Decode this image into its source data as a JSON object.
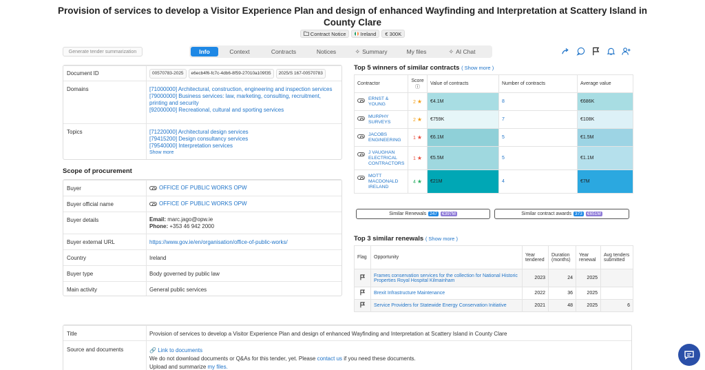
{
  "title": {
    "line1": "Provision of services to develop a Visitor Experience Plan and design of enhanced Wayfinding and Interpretation at Scattery Island in",
    "line2": "County Clare"
  },
  "badges": {
    "notice": "Contract Notice",
    "country": "Ireland",
    "value": "€ 300K"
  },
  "summarize_button": "Generate tender summarization",
  "tabs": [
    "Info",
    "Context",
    "Contracts",
    "Notices",
    "Summary",
    "My files",
    "AI Chat"
  ],
  "details": {
    "document_id_label": "Document ID",
    "document_ids": [
      "00570783-2025",
      "e6ecb4f6-fc7c-4db6-8f59-27010a109f35",
      "2025/S 167-00570783"
    ],
    "domains_label": "Domains",
    "domains": [
      "[71000000] Architectural, construction, engineering and inspection services",
      "[79000000] Business services: law, marketing, consulting, recruitment, printing and security",
      "[92000000] Recreational, cultural and sporting services"
    ],
    "topics_label": "Topics",
    "topics": [
      "[71220000] Architectural design services",
      "[79415200] Design consultancy services",
      "[79540000] Interpretation services"
    ],
    "show_more": "Show more"
  },
  "scope": {
    "title": "Scope of procurement",
    "buyer_label": "Buyer",
    "buyer": "OFFICE OF PUBLIC WORKS OPW",
    "buyer_official_label": "Buyer official name",
    "buyer_official": "OFFICE OF PUBLIC WORKS OPW",
    "buyer_details_label": "Buyer details",
    "email_label": "Email:",
    "email": "marc.jago@opw.ie",
    "phone_label": "Phone:",
    "phone": "+353 46 942 2000",
    "external_url_label": "Buyer external URL",
    "external_url": "https://www.gov.ie/en/organisation/office-of-public-works/",
    "country_label": "Country",
    "country": "Ireland",
    "buyer_type_label": "Buyer type",
    "buyer_type": "Body governed by public law",
    "main_activity_label": "Main activity",
    "main_activity": "General public services"
  },
  "winners": {
    "title": "Top 5 winners of similar contracts",
    "show_more": "( Show more )",
    "headers": [
      "Contractor",
      "Score",
      "Value of contracts",
      "Number of contracts",
      "Average value"
    ],
    "rows": [
      {
        "name": "ERNST & YOUNG",
        "score": "2",
        "star": "orange",
        "value": "€4.1M",
        "count": "8",
        "avg": "€686K",
        "value_color": "#a8dde3",
        "avg_color": "#a8dde3"
      },
      {
        "name": "MURPHY SURVEYS",
        "score": "2",
        "star": "orange",
        "value": "€759K",
        "count": "7",
        "avg": "€108K",
        "value_color": "#e6f6f8",
        "avg_color": "#ddf1f7"
      },
      {
        "name": "JACOBS ENGINEERING",
        "score": "1",
        "star": "red",
        "value": "€6.1M",
        "count": "5",
        "avg": "€1.5M",
        "value_color": "#8fd0d8",
        "avg_color": "#9dd4e4"
      },
      {
        "name": "J VAUGHAN ELECTRICAL CONTRACTORS",
        "score": "1",
        "star": "red",
        "value": "€5.5M",
        "count": "5",
        "avg": "€1.1M",
        "value_color": "#9fd8df",
        "avg_color": "#b5e0ec"
      },
      {
        "name": "MOTT MACDONALD IRELAND",
        "score": "4",
        "star": "green",
        "value": "€21M",
        "count": "4",
        "avg": "€7M",
        "value_color": "#00a7b5",
        "avg_color": "#2ba8e0"
      }
    ]
  },
  "similar": {
    "renewals_label": "Similar Renewals",
    "renewals_count": "247",
    "renewals_value": "€397M",
    "awards_label": "Similar contract awards",
    "awards_count": "373",
    "awards_value": "€651M"
  },
  "renewals": {
    "title": "Top 3 similar renewals",
    "show_more": "( Show more )",
    "headers": [
      "Flag",
      "Opportunity",
      "Year tendered",
      "Duration (months)",
      "Year renewal",
      "Avg tenders submitted"
    ],
    "rows": [
      {
        "opportunity": "Frames conservation services for the collection for National Historic Properties Royal Hospital Kilmainham",
        "year": "2023",
        "duration": "24",
        "renewal": "2025",
        "avg": ""
      },
      {
        "opportunity": "Brexit Infrastructure Maintenance",
        "year": "2022",
        "duration": "36",
        "renewal": "2025",
        "avg": ""
      },
      {
        "opportunity": "Service Providers for Statewide Energy Conservation Initiative",
        "year": "2021",
        "duration": "48",
        "renewal": "2025",
        "avg": "6"
      }
    ]
  },
  "bottom": {
    "title_label": "Title",
    "title_value": "Provision of services to develop a Visitor Experience Plan and design of enhanced Wayfinding and Interpretation at Scattery Island in County Clare",
    "source_label": "Source and documents",
    "link_docs": "Link to documents",
    "no_download_pre": "We do not download documents or Q&As for this tender, yet. Please",
    "contact_us": "contact us",
    "no_download_post": "if you need these documents.",
    "upload_pre": "Upload and summarize",
    "my_files": "my files."
  }
}
